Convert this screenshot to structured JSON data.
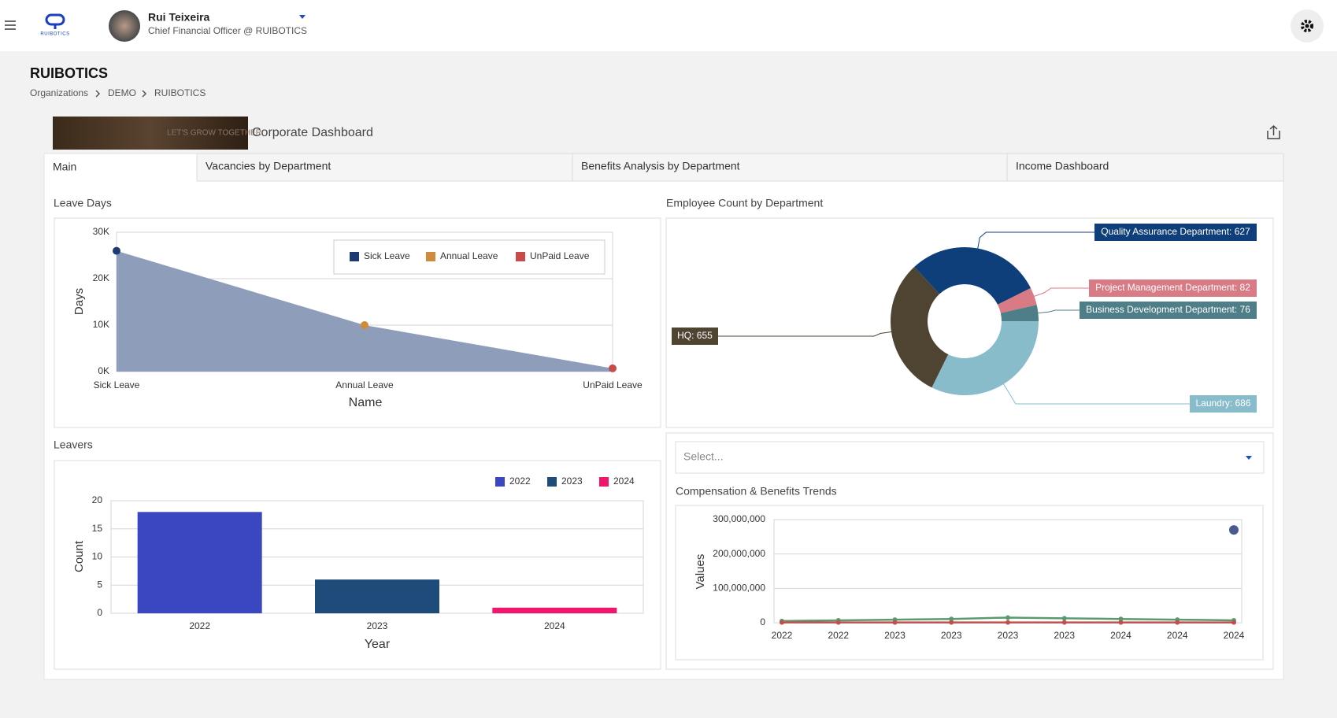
{
  "header": {
    "logo_text": "RUIBOTICS",
    "user_name": "Rui Teixeira",
    "user_role": "Chief Financial Officer @ RUIBOTICS"
  },
  "page": {
    "title": "RUIBOTICS",
    "breadcrumb": [
      "Organizations",
      "DEMO",
      "RUIBOTICS"
    ]
  },
  "dashboard": {
    "banner_text": "LET'S GROW TOGETHER",
    "title": "Corporate Dashboard",
    "tabs": [
      "Main",
      "Vacancies by Department",
      "Benefits Analysis by Department",
      "Income Dashboard"
    ],
    "filter_placeholder": "Select..."
  },
  "chart_data": [
    {
      "type": "area",
      "title": "Leave Days",
      "categories": [
        "Sick Leave",
        "Annual Leave",
        "UnPaid Leave"
      ],
      "values": [
        26000,
        10000,
        700
      ],
      "color": "#8e9dba",
      "point_colors": [
        "#1f3b73",
        "#d08a3c",
        "#c94a4a"
      ],
      "xlabel": "Name",
      "ylabel": "Days",
      "ylim": [
        0,
        30000
      ],
      "yticks": [
        {
          "value": 0,
          "label": "0K"
        },
        {
          "value": 10000,
          "label": "10K"
        },
        {
          "value": 20000,
          "label": "20K"
        },
        {
          "value": 30000,
          "label": "30K"
        }
      ],
      "grid": true,
      "legend": "top-right"
    },
    {
      "type": "donut",
      "title": "Employee Count by Department",
      "values": [
        627,
        82,
        76,
        686,
        655
      ],
      "value_labels": [
        "Quality Assurance Department: 627",
        "Project Management Department: 82",
        "Business Development Department: 76",
        "Laundry: 686",
        "HQ: 655"
      ],
      "colors": [
        "#0f3f7a",
        "#d97b85",
        "#4e7e88",
        "#88bccb",
        "#4e4431"
      ]
    },
    {
      "type": "bar",
      "title": "Leavers",
      "categories": [
        "2022",
        "2023",
        "2024"
      ],
      "series": [
        {
          "name": "2022",
          "color": "#3a47c0",
          "values": [
            18,
            null,
            null
          ]
        },
        {
          "name": "2023",
          "color": "#1f4b7a",
          "values": [
            null,
            6,
            null
          ]
        },
        {
          "name": "2024",
          "color": "#f0166b",
          "values": [
            null,
            null,
            1
          ]
        }
      ],
      "xlabel": "Year",
      "ylabel": "Count",
      "ylim": [
        0,
        20
      ],
      "yticks": [
        0,
        5,
        10,
        15,
        20
      ],
      "grid": true,
      "legend": "top-right"
    },
    {
      "type": "line",
      "title": "Compensation & Benefits Trends",
      "categories": [
        "2022",
        "2022",
        "2023",
        "2023",
        "2023",
        "2023",
        "2024",
        "2024",
        "2024"
      ],
      "series": [
        {
          "color": "#4b5a8e",
          "values": [
            null,
            null,
            null,
            null,
            null,
            null,
            null,
            null,
            270000000
          ]
        },
        {
          "color": "#5a9a6e",
          "values": [
            5000000,
            7000000,
            9000000,
            11000000,
            15000000,
            13000000,
            11000000,
            9000000,
            7000000
          ]
        },
        {
          "color": "#c0504d",
          "values": [
            1000000,
            1000000,
            1000000,
            1000000,
            1000000,
            1000000,
            1000000,
            1000000,
            1000000
          ]
        }
      ],
      "ylabel": "Values",
      "ylim": [
        0,
        300000000
      ],
      "yticks": [
        0,
        {
          "value": 100000000,
          "label": "100,000,000"
        },
        {
          "value": 200000000,
          "label": "200,000,000"
        },
        {
          "value": 300000000,
          "label": "300,000,000"
        }
      ],
      "grid": true
    }
  ]
}
